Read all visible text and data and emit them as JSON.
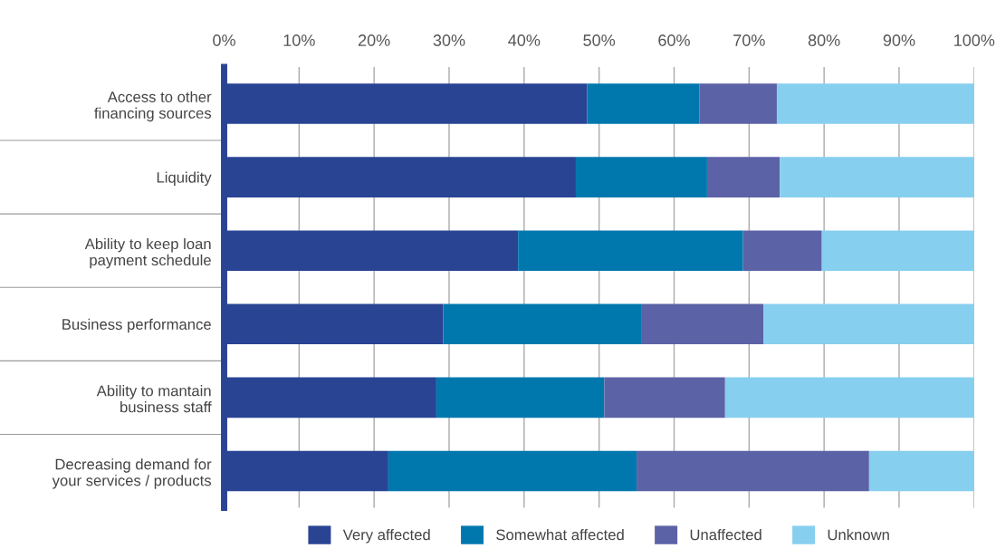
{
  "chart_data": {
    "type": "bar",
    "orientation": "horizontal",
    "stacked": true,
    "categories": [
      "Access to other\nfinancing sources",
      "Liquidity",
      "Ability to keep loan\npayment schedule",
      "Business performance",
      "Ability to mantain\nbusiness staff",
      "Decreasing demand for\nyour services / products"
    ],
    "series": [
      {
        "name": "Very affected",
        "color": "#2a4494",
        "values": [
          48.4,
          46.9,
          39.2,
          29.2,
          28.3,
          21.9
        ]
      },
      {
        "name": "Somewhat affected",
        "color": "#0078ae",
        "values": [
          15.0,
          17.5,
          30.0,
          26.4,
          22.4,
          33.1
        ]
      },
      {
        "name": "Unaffected",
        "color": "#5c62a6",
        "values": [
          10.3,
          9.7,
          10.5,
          16.3,
          16.1,
          31.0
        ]
      },
      {
        "name": "Unknown",
        "color": "#87cfef",
        "values": [
          26.3,
          25.9,
          20.3,
          28.1,
          33.2,
          14.0
        ]
      }
    ],
    "xlim": [
      0,
      100
    ],
    "xticks": [
      {
        "value": 0,
        "label": "0%"
      },
      {
        "value": 10,
        "label": "10%"
      },
      {
        "value": 20,
        "label": "20%"
      },
      {
        "value": 30,
        "label": "30%"
      },
      {
        "value": 40,
        "label": "40%"
      },
      {
        "value": 50,
        "label": "50%"
      },
      {
        "value": 60,
        "label": "60%"
      },
      {
        "value": 70,
        "label": "70%"
      },
      {
        "value": 80,
        "label": "80%"
      },
      {
        "value": 90,
        "label": "90%"
      },
      {
        "value": 100,
        "label": "100%"
      }
    ],
    "grid": "x",
    "legend": "bottom"
  }
}
